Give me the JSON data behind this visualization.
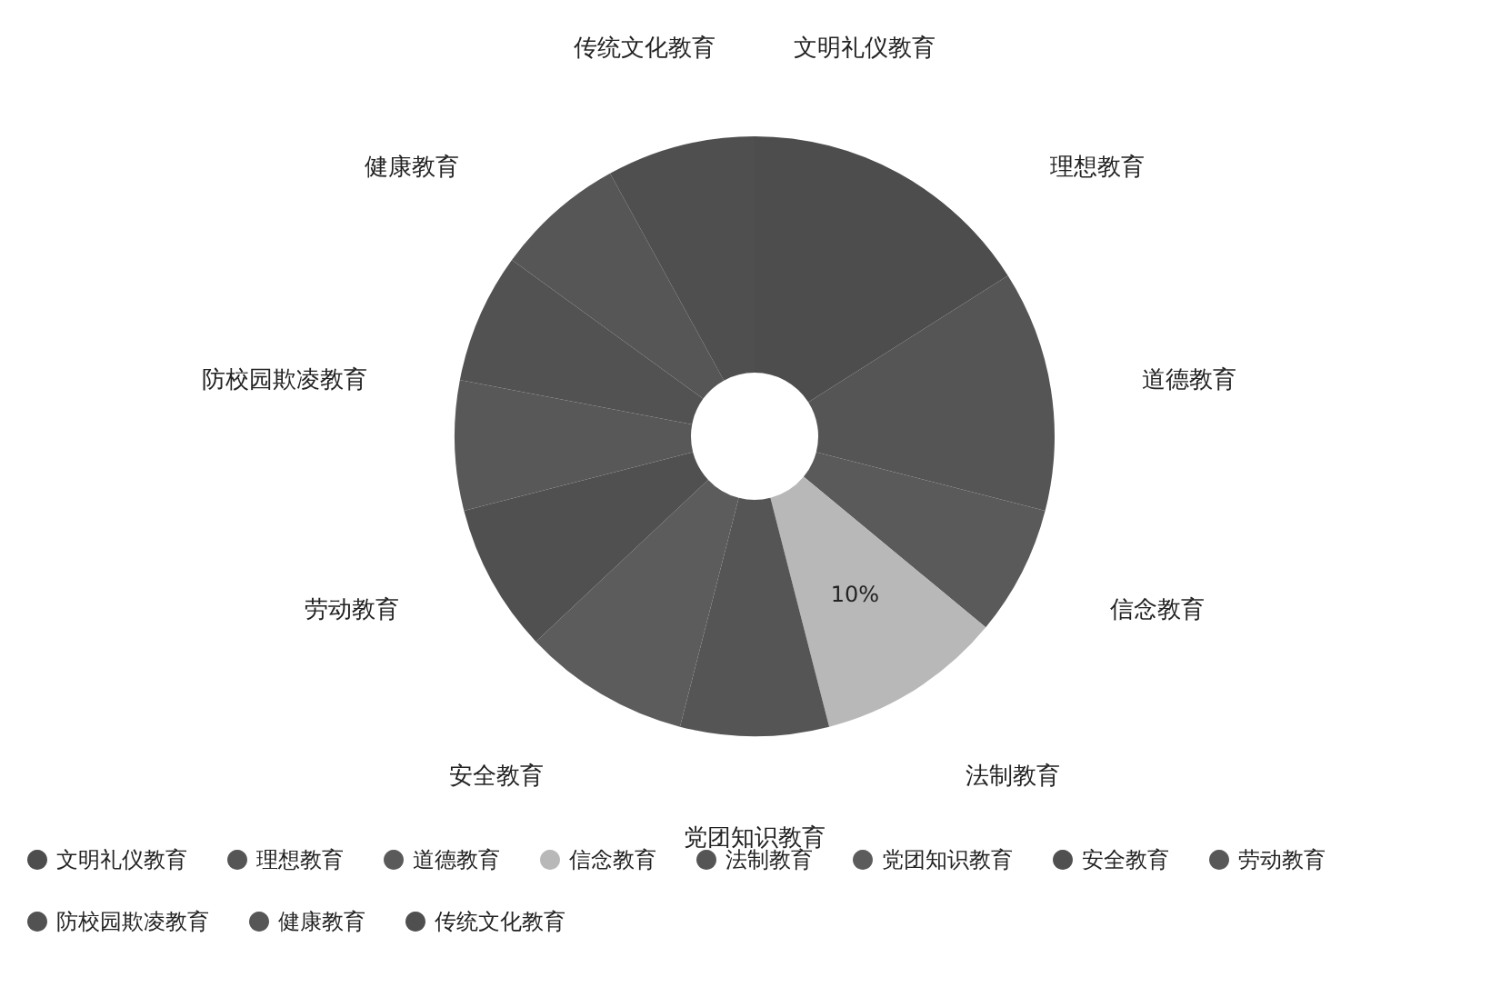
{
  "chart_data": {
    "type": "donut",
    "categories": [
      "文明礼仪教育",
      "理想教育",
      "道德教育",
      "信念教育",
      "法制教育",
      "党团知识教育",
      "安全教育",
      "劳动教育",
      "防校园欺凌教育",
      "健康教育",
      "传统文化教育"
    ],
    "values": [
      16,
      13,
      7,
      10,
      8,
      9,
      8,
      7,
      7,
      7,
      8
    ],
    "colors": [
      "#4d4d4d",
      "#555555",
      "#5a5a5a",
      "#b8b8b8",
      "#555555",
      "#5c5c5c",
      "#505050",
      "#585858",
      "#525252",
      "#565656",
      "#4f4f4f"
    ],
    "value_labels": [
      null,
      null,
      null,
      "10%",
      null,
      null,
      null,
      null,
      null,
      null,
      null
    ],
    "legend": "bottom"
  }
}
